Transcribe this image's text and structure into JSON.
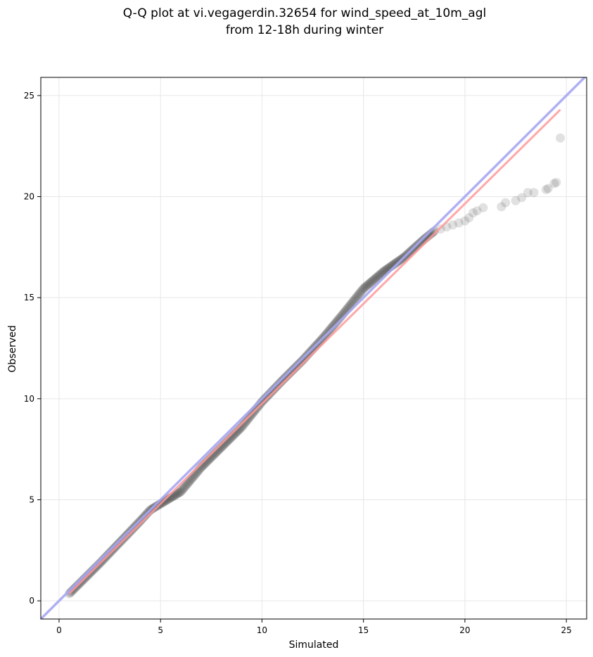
{
  "chart_data": {
    "type": "scatter",
    "title_lines": [
      "Q-Q plot at vi.vegagerdin.32654 for wind_speed_at_10m_agl",
      "from 12-18h during winter"
    ],
    "xlabel": "Simulated",
    "ylabel": "Observed",
    "xlim": [
      -0.9,
      26
    ],
    "ylim": [
      -0.9,
      25.9
    ],
    "xticks": [
      0,
      5,
      10,
      15,
      20,
      25
    ],
    "yticks": [
      0,
      5,
      10,
      15,
      20,
      25
    ],
    "grid": true,
    "colors": {
      "points": "#333333",
      "fit_line": "#ff9999",
      "identity_line": "#a6a6f2",
      "grid": "#e6e6e6"
    },
    "identity_line": {
      "x": [
        -0.9,
        26
      ],
      "y": [
        -0.9,
        26
      ]
    },
    "fit_line": {
      "x": [
        0.5,
        24.7
      ],
      "y": [
        0.35,
        24.3
      ]
    },
    "anchors": [
      [
        0.5,
        0.35
      ],
      [
        1.0,
        0.85
      ],
      [
        2.0,
        1.85
      ],
      [
        3.0,
        2.9
      ],
      [
        4.0,
        3.95
      ],
      [
        4.5,
        4.5
      ],
      [
        5.0,
        4.8
      ],
      [
        6.0,
        5.4
      ],
      [
        7.0,
        6.6
      ],
      [
        8.0,
        7.6
      ],
      [
        9.0,
        8.6
      ],
      [
        10.0,
        9.85
      ],
      [
        11.0,
        10.9
      ],
      [
        12.0,
        11.9
      ],
      [
        13.0,
        13.0
      ],
      [
        14.0,
        14.2
      ],
      [
        15.0,
        15.45
      ],
      [
        16.0,
        16.3
      ],
      [
        17.0,
        17.0
      ],
      [
        18.0,
        17.9
      ],
      [
        18.5,
        18.3
      ]
    ],
    "tail_points": [
      [
        18.8,
        18.4
      ],
      [
        19.1,
        18.5
      ],
      [
        19.4,
        18.6
      ],
      [
        19.7,
        18.7
      ],
      [
        20.0,
        18.8
      ],
      [
        20.2,
        18.95
      ],
      [
        20.4,
        19.2
      ],
      [
        20.6,
        19.3
      ],
      [
        20.9,
        19.45
      ],
      [
        21.8,
        19.5
      ],
      [
        22.0,
        19.7
      ],
      [
        22.5,
        19.8
      ],
      [
        22.8,
        19.95
      ],
      [
        23.1,
        20.2
      ],
      [
        23.4,
        20.2
      ],
      [
        24.0,
        20.35
      ],
      [
        24.1,
        20.4
      ],
      [
        24.4,
        20.65
      ],
      [
        24.5,
        20.7
      ],
      [
        24.7,
        22.9
      ]
    ]
  }
}
